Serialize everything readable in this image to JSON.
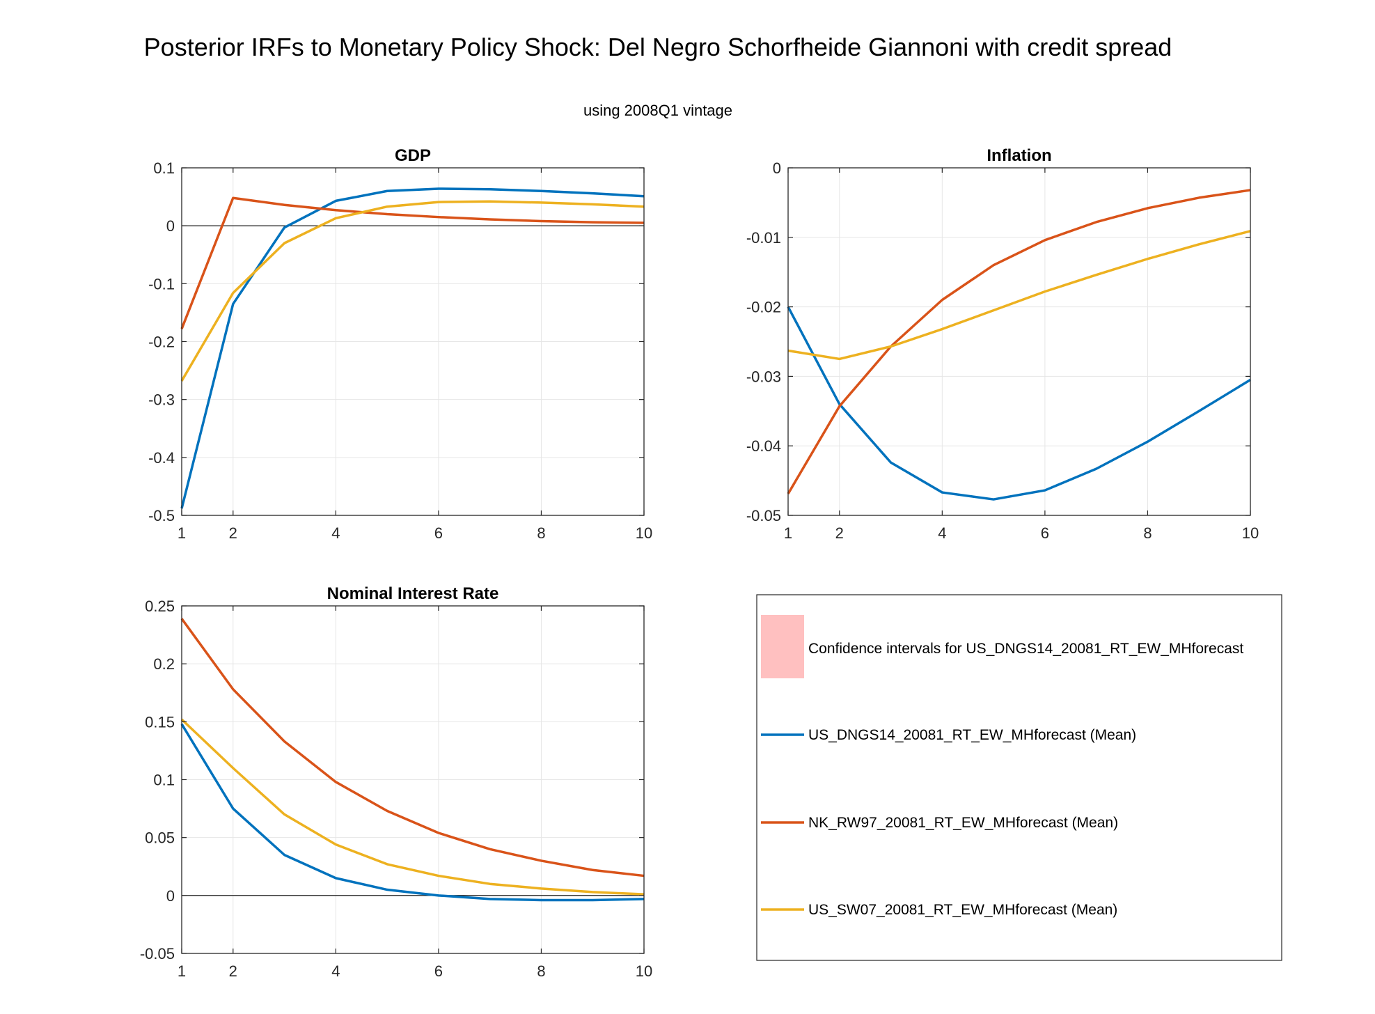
{
  "figure": {
    "title": "Posterior IRFs to Monetary Policy Shock: Del Negro Schorfheide Giannoni with credit spread",
    "subtitle": "using 2008Q1 vintage"
  },
  "colors": {
    "blue": "#0072BD",
    "orange": "#D95319",
    "yellow": "#EDB120",
    "ci": "#FFC0C0",
    "grid": "#E6E6E6",
    "axis": "#262626"
  },
  "legend": {
    "items": [
      {
        "label": "Confidence intervals for US_DNGS14_20081_RT_EW_MHforecast",
        "kind": "patch",
        "color": "#FFC0C0"
      },
      {
        "label": "US_DNGS14_20081_RT_EW_MHforecast (Mean)",
        "kind": "line",
        "color": "#0072BD"
      },
      {
        "label": "NK_RW97_20081_RT_EW_MHforecast (Mean)",
        "kind": "line",
        "color": "#D95319"
      },
      {
        "label": "US_SW07_20081_RT_EW_MHforecast (Mean)",
        "kind": "line",
        "color": "#EDB120"
      }
    ]
  },
  "chart_data": [
    {
      "type": "line",
      "title": "GDP",
      "xlim": [
        1,
        10
      ],
      "xticks": [
        1,
        2,
        4,
        6,
        8,
        10
      ],
      "ylim": [
        -0.5,
        0.1
      ],
      "yticks": [
        -0.5,
        -0.4,
        -0.3,
        -0.2,
        -0.1,
        0,
        0.1
      ],
      "ytick_labels": [
        "-0.5",
        "-0.4",
        "-0.3",
        "-0.2",
        "-0.1",
        "0",
        "0.1"
      ],
      "grid": true,
      "zero_line": true,
      "x": [
        1,
        2,
        3,
        4,
        5,
        6,
        7,
        8,
        9,
        10
      ],
      "series": [
        {
          "name": "US_DNGS14_20081_RT_EW_MHforecast (Mean)",
          "color": "#0072BD",
          "values": [
            -0.488,
            -0.135,
            -0.003,
            0.043,
            0.06,
            0.064,
            0.063,
            0.06,
            0.056,
            0.051
          ]
        },
        {
          "name": "NK_RW97_20081_RT_EW_MHforecast (Mean)",
          "color": "#D95319",
          "values": [
            -0.178,
            0.048,
            0.036,
            0.027,
            0.02,
            0.015,
            0.011,
            0.008,
            0.006,
            0.005
          ]
        },
        {
          "name": "US_SW07_20081_RT_EW_MHforecast (Mean)",
          "color": "#EDB120",
          "values": [
            -0.268,
            -0.116,
            -0.03,
            0.013,
            0.033,
            0.041,
            0.042,
            0.04,
            0.037,
            0.033
          ]
        }
      ]
    },
    {
      "type": "line",
      "title": "Inflation",
      "xlim": [
        1,
        10
      ],
      "xticks": [
        1,
        2,
        4,
        6,
        8,
        10
      ],
      "ylim": [
        -0.05,
        0
      ],
      "yticks": [
        -0.05,
        -0.04,
        -0.03,
        -0.02,
        -0.01,
        0
      ],
      "ytick_labels": [
        "-0.05",
        "-0.04",
        "-0.03",
        "-0.02",
        "-0.01",
        "0"
      ],
      "grid": true,
      "zero_line": false,
      "x": [
        1,
        2,
        3,
        4,
        5,
        6,
        7,
        8,
        9,
        10
      ],
      "series": [
        {
          "name": "US_DNGS14_20081_RT_EW_MHforecast (Mean)",
          "color": "#0072BD",
          "values": [
            -0.02,
            -0.034,
            -0.0424,
            -0.0467,
            -0.0477,
            -0.0464,
            -0.0433,
            -0.0394,
            -0.035,
            -0.0305
          ]
        },
        {
          "name": "NK_RW97_20081_RT_EW_MHforecast (Mean)",
          "color": "#D95319",
          "values": [
            -0.0469,
            -0.0343,
            -0.0257,
            -0.019,
            -0.014,
            -0.0104,
            -0.0078,
            -0.0058,
            -0.0043,
            -0.0032
          ]
        },
        {
          "name": "US_SW07_20081_RT_EW_MHforecast (Mean)",
          "color": "#EDB120",
          "values": [
            -0.0263,
            -0.0275,
            -0.0257,
            -0.0232,
            -0.0205,
            -0.0178,
            -0.0154,
            -0.0131,
            -0.011,
            -0.0091
          ]
        }
      ]
    },
    {
      "type": "line",
      "title": "Nominal Interest Rate",
      "xlim": [
        1,
        10
      ],
      "xticks": [
        1,
        2,
        4,
        6,
        8,
        10
      ],
      "ylim": [
        -0.05,
        0.25
      ],
      "yticks": [
        -0.05,
        0,
        0.05,
        0.1,
        0.15,
        0.2,
        0.25
      ],
      "ytick_labels": [
        "-0.05",
        "0",
        "0.05",
        "0.1",
        "0.15",
        "0.2",
        "0.25"
      ],
      "grid": true,
      "zero_line": true,
      "x": [
        1,
        2,
        3,
        4,
        5,
        6,
        7,
        8,
        9,
        10
      ],
      "series": [
        {
          "name": "US_DNGS14_20081_RT_EW_MHforecast (Mean)",
          "color": "#0072BD",
          "values": [
            0.148,
            0.075,
            0.035,
            0.015,
            0.005,
            0.0,
            -0.003,
            -0.004,
            -0.004,
            -0.003
          ]
        },
        {
          "name": "NK_RW97_20081_RT_EW_MHforecast (Mean)",
          "color": "#D95319",
          "values": [
            0.239,
            0.178,
            0.133,
            0.098,
            0.073,
            0.054,
            0.04,
            0.03,
            0.022,
            0.017
          ]
        },
        {
          "name": "US_SW07_20081_RT_EW_MHforecast (Mean)",
          "color": "#EDB120",
          "values": [
            0.152,
            0.11,
            0.07,
            0.044,
            0.027,
            0.017,
            0.01,
            0.006,
            0.003,
            0.001
          ]
        }
      ]
    }
  ]
}
